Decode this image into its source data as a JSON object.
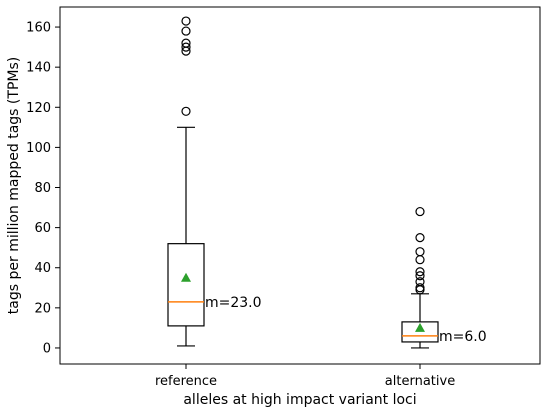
{
  "chart_data": {
    "type": "box",
    "xlabel": "alleles at high impact variant loci",
    "ylabel": "tags per million mapped tags (TPMs)",
    "ylim": [
      -8,
      170
    ],
    "yticks": [
      0,
      20,
      40,
      60,
      80,
      100,
      120,
      140,
      160
    ],
    "grid": false,
    "categories": [
      "reference",
      "alternative"
    ],
    "boxes": [
      {
        "name": "reference",
        "whisker_low": 1,
        "q1": 11,
        "median": 23,
        "q3": 52,
        "whisker_high": 110,
        "mean": 35,
        "outliers": [
          118,
          148,
          150,
          152,
          158,
          163
        ],
        "annotation": "m=23.0"
      },
      {
        "name": "alternative",
        "whisker_low": 0,
        "q1": 3,
        "median": 6,
        "q3": 13,
        "whisker_high": 27,
        "mean": 10,
        "outliers": [
          29,
          30,
          33,
          36,
          38,
          44,
          48,
          55,
          68
        ],
        "annotation": "m=6.0"
      }
    ],
    "colors": {
      "median": "#ff7f0e",
      "mean": "#2ca02c",
      "box": "#000000"
    }
  }
}
